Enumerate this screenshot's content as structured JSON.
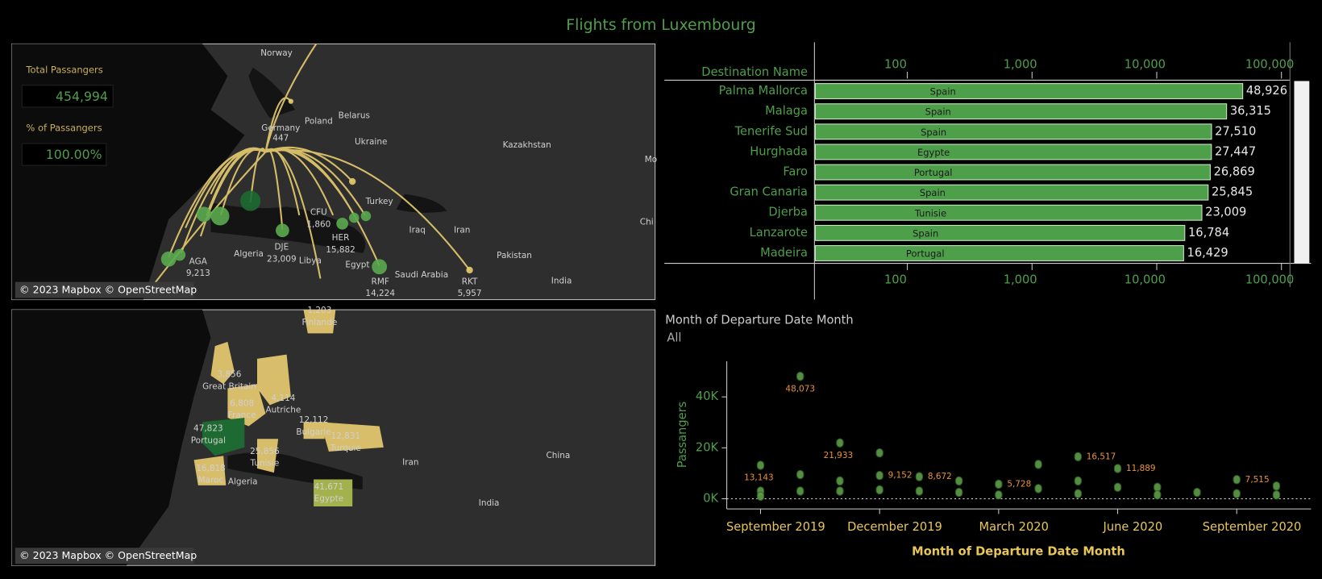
{
  "title": "Flights from Luxembourg",
  "kpis": [
    {
      "label": "Total Passangers",
      "value": "454,994"
    },
    {
      "label": "% of Passangers",
      "value": "100.00%"
    }
  ],
  "route_map": {
    "attribution": "© 2023 Mapbox © OpenStreetMap",
    "places": [
      "Norway",
      "Poland",
      "Belarus",
      "Ukraine",
      "Kazakhstan",
      "Germany",
      "Turkey",
      "Iraq",
      "Iran",
      "Pakistan",
      "India",
      "Algeria",
      "Libya",
      "Egypt",
      "Saudi Arabia",
      "Chi",
      "Mo"
    ],
    "hub_passengers": "447",
    "airports": [
      {
        "code": "AGA",
        "passengers": "9,213"
      },
      {
        "code": "DJE",
        "passengers": "23,009"
      },
      {
        "code": "CFU",
        "passengers": "1,860"
      },
      {
        "code": "HER",
        "passengers": "15,882"
      },
      {
        "code": "RMF",
        "passengers": "14,224"
      },
      {
        "code": "RKT",
        "passengers": "5,957"
      }
    ]
  },
  "country_map": {
    "attribution": "© 2023 Mapbox © OpenStreetMap",
    "countries": [
      {
        "name": "Finlande",
        "passengers": "1,203"
      },
      {
        "name": "Great Britain",
        "passengers": "3,856"
      },
      {
        "name": "France",
        "passengers": "6,808"
      },
      {
        "name": "Autriche",
        "passengers": "4,114"
      },
      {
        "name": "Bulgarie",
        "passengers": "12,112"
      },
      {
        "name": "Turquie",
        "passengers": "12,831"
      },
      {
        "name": "Portugal",
        "passengers": "47,823"
      },
      {
        "name": "Tunisie",
        "passengers": "25,856"
      },
      {
        "name": "Maroc",
        "passengers": "16,818"
      },
      {
        "name": "Egypte",
        "passengers": "41,671"
      }
    ],
    "places": [
      "Algeria",
      "Iran",
      "China",
      "India"
    ]
  },
  "chart_data": [
    {
      "type": "bar",
      "orientation": "horizontal",
      "category_header": "Destination Name",
      "categories": [
        "Palma Mallorca",
        "Malaga",
        "Tenerife Sud",
        "Hurghada",
        "Faro",
        "Gran Canaria",
        "Djerba",
        "Lanzarote",
        "Madeira"
      ],
      "countries": [
        "Spain",
        "Spain",
        "Spain",
        "Egypte",
        "Portugal",
        "Spain",
        "Tunisie",
        "Spain",
        "Portugal"
      ],
      "values": [
        48926,
        36315,
        27510,
        27447,
        26869,
        25845,
        23009,
        16784,
        16429
      ],
      "value_labels": [
        "48,926",
        "36,315",
        "27,510",
        "27,447",
        "26,869",
        "25,845",
        "23,009",
        "16,784",
        "16,429"
      ],
      "color": "#4e9f4a",
      "xscale": "log",
      "xlim": [
        18,
        117000
      ],
      "xticks": [
        100,
        {
          "value": 1000,
          "label": "1,000"
        },
        {
          "value": 10000,
          "label": "10,000"
        },
        {
          "value": 100000,
          "label": "100,000"
        }
      ]
    },
    {
      "type": "strip",
      "title": "Month of Departure Date Month",
      "filter_value": "All",
      "y_label": "Passangers",
      "x_label": "Month of Departure Date Month",
      "x": [
        "2019-09",
        "2019-09",
        "2019-09",
        "2019-10",
        "2019-10",
        "2019-10",
        "2019-11",
        "2019-11",
        "2019-11",
        "2019-12",
        "2019-12",
        "2019-12",
        "2020-01",
        "2020-01",
        "2020-02",
        "2020-02",
        "2020-03",
        "2020-03",
        "2020-04",
        "2020-04",
        "2020-05",
        "2020-05",
        "2020-05",
        "2020-06",
        "2020-06",
        "2020-07",
        "2020-07",
        "2020-08",
        "2020-09",
        "2020-09",
        "2020-10",
        "2020-10"
      ],
      "values": [
        13143,
        3000,
        1000,
        48073,
        9500,
        3000,
        21933,
        7000,
        3000,
        18000,
        9152,
        3500,
        8672,
        3000,
        7000,
        2500,
        5728,
        1500,
        13500,
        4000,
        16517,
        7000,
        2000,
        11889,
        4500,
        4500,
        1500,
        2500,
        7515,
        2000,
        5000,
        1500
      ],
      "value_labels": [
        "13,143",
        null,
        null,
        "48,073",
        null,
        null,
        "21,933",
        null,
        null,
        null,
        "9,152",
        null,
        "8,672",
        null,
        null,
        null,
        "5,728",
        null,
        null,
        null,
        "16,517",
        null,
        null,
        "11,889",
        null,
        null,
        null,
        null,
        "7,515",
        null,
        null,
        null
      ],
      "color": "#5e9e48",
      "label_color": "#e8923a",
      "xlim": [
        "2019-08",
        "2020-11"
      ],
      "xticks": [
        {
          "value": "2019-09",
          "label": "September 2019"
        },
        {
          "value": "2019-12",
          "label": "December 2019"
        },
        {
          "value": "2020-03",
          "label": "March 2020"
        },
        {
          "value": "2020-06",
          "label": "June 2020"
        },
        {
          "value": "2020-09",
          "label": "September 2020"
        }
      ],
      "ylim": [
        -4000,
        54000
      ],
      "yticks": [
        {
          "value": 0,
          "label": "0K"
        },
        {
          "value": 20000,
          "label": "20K"
        },
        {
          "value": 40000,
          "label": "40K"
        }
      ],
      "zero_line": true
    }
  ]
}
